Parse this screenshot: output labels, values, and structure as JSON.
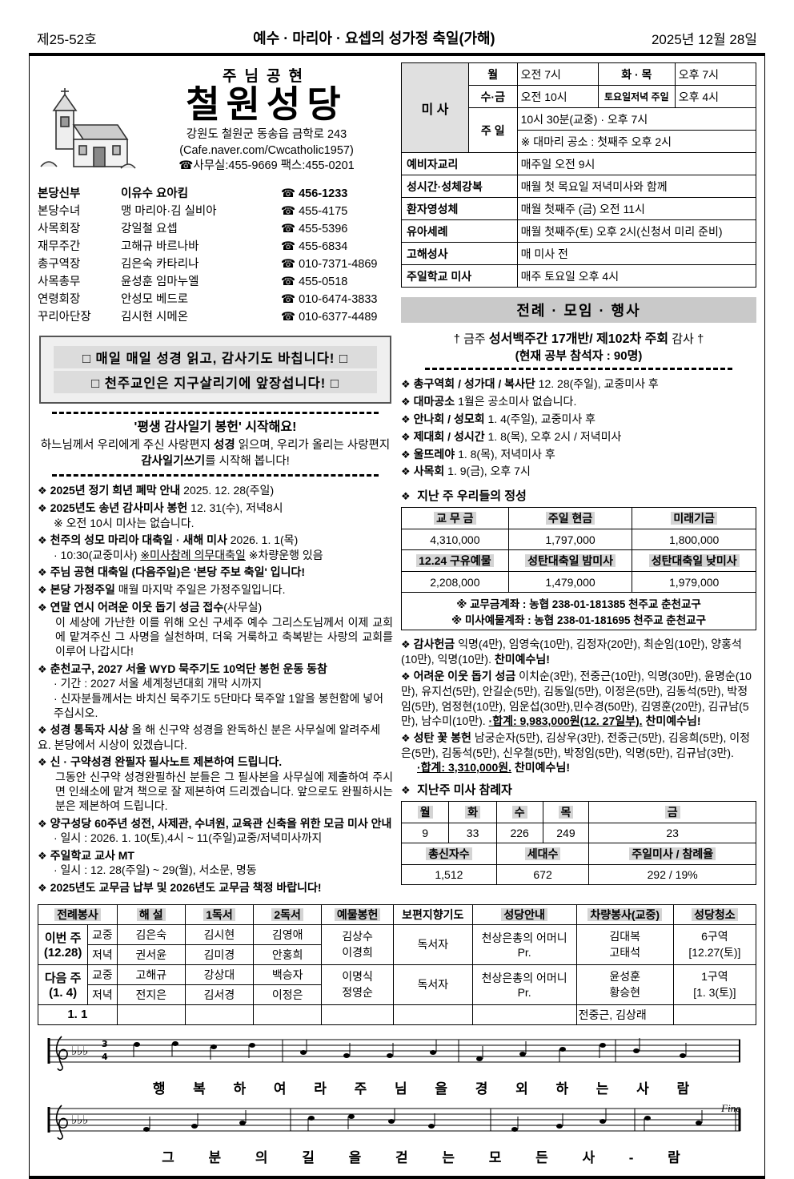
{
  "icons": {
    "bullet": "❖",
    "phone": "☎",
    "cross": "†"
  },
  "header": {
    "issue": "제25-52호",
    "feast": "예수 · 마리아 · 요셉의 성가정 축일(가해)",
    "date": "2025년 12월 28일"
  },
  "church": {
    "motto": "주님공현",
    "name": "철원성당",
    "address": "강원도 철원군 동송읍 금학로 243",
    "cafe": "(Cafe.naver.com/Cwcatholic1957)",
    "office": "☎사무실:455-9669  팩스:455-0201"
  },
  "staff": {
    "rows": [
      {
        "role": "본당신부",
        "name": "이유수 요아킴",
        "phone": "☎ 456-1233"
      },
      {
        "role": "본당수녀",
        "name": "맹 마리아·김 실비아",
        "phone": "☎ 455-4175"
      },
      {
        "role": "사목회장",
        "name": "강일철 요셉",
        "phone": "☎ 455-5396"
      },
      {
        "role": "재무주간",
        "name": "고해규 바르나바",
        "phone": "☎ 455-6834"
      },
      {
        "role": "총구역장",
        "name": "김은숙 카타리나",
        "phone": "☎ 010-7371-4869"
      },
      {
        "role": "사목총무",
        "name": "윤성훈 임마누엘",
        "phone": "☎ 455-0518"
      },
      {
        "role": "연령회장",
        "name": "안성모 베드로",
        "phone": "☎ 010-6474-3833"
      },
      {
        "role": "꾸리아단장",
        "name": "김시현 시메온",
        "phone": "☎ 010-6377-4489"
      }
    ]
  },
  "mass": {
    "label": "미 사",
    "r1": {
      "d1": "월",
      "t1": "오전 7시",
      "d2": "화 · 목",
      "t2": "오후 7시"
    },
    "r2": {
      "d1": "수·금",
      "t1": "오전 10시",
      "d2": "토요일저녁 주일",
      "t2": "오후 4시"
    },
    "sun": {
      "d": "주 일",
      "t1": "10시 30분(교중) · 오후 7시",
      "t2": "※ 대마리 공소 : 첫째주 오후 2시"
    },
    "extra": [
      {
        "k": "예비자교리",
        "v": "매주일 오전 9시"
      },
      {
        "k": "성시간·성체강복",
        "v": "매월 첫 목요일 저녁미사와 함께"
      },
      {
        "k": "환자영성체",
        "v": "매월 첫째주 (금) 오전 11시"
      },
      {
        "k": "유아세례",
        "v": "매월 첫째주(토) 오후 2시(신청서 미리 준비)"
      },
      {
        "k": "고해성사",
        "v": "매 미사 전"
      },
      {
        "k": "주일학교 미사",
        "v": "매주 토요일 오후 4시"
      }
    ]
  },
  "slogans": [
    "□ 매일 매일 성경 읽고, 감사기도 바칩니다! □",
    "□ 천주교인은 지구살리기에 앞장섭니다! □"
  ],
  "campaign": {
    "title": "'평생 감사일기 봉헌'",
    "title_suffix": "  시작해요!",
    "body1": "하느님께서 우리에게 주신 사랑편지 ",
    "body1b": "성경",
    "body2": " 읽으며, 우리가 올리는 사랑편지 ",
    "body2b": "감사일기쓰기",
    "body3": "를 시작해 봅니다!"
  },
  "announcements": {
    "items": [
      {
        "bold": "2025년 정기 희년 폐막 안내",
        "rest": "  2025. 12. 28(주일)"
      },
      {
        "bold": "2025년도 송년 감사미사 봉헌",
        "rest": " 12. 31(수), 저녁8시",
        "sub1": "※ 오전 10시 미사는 없습니다."
      },
      {
        "bold": "천주의 성모 마리아 대축일 · 새해 미사",
        "rest": " 2026. 1. 1(목)",
        "sub_pre": "· 10:30(교중미사) ",
        "sub_u": "※미사참례 의무대축일",
        "sub_post": "  ※차량운행 있음"
      },
      {
        "bold": "주님 공현 대축일 (다음주일)은  '본당 주보 축일'  입니다!"
      },
      {
        "bold": "본당 가정주일",
        "rest": " 매월 마지막 주일은 가정주일입니다."
      },
      {
        "bold": "연말 연시 어려운 이웃 돕기 성금 접수",
        "rest": "(사무실)",
        "para": "이 세상에 가난한 이를 위해 오신 구세주 예수 그리스도님께서 이제 교회에 맡겨주신 그 사명을 실천하며, 더욱 거룩하고 축복받는 사랑의 교회를 이루어 나갑시다!"
      },
      {
        "bold": "춘천교구, 2027 서울 WYD 묵주기도 10억단 봉헌 운동 동참",
        "sub1": "· 기간 : 2027 서울 세계청년대회 개막 시까지",
        "sub2": "· 신자분들께서는  바치신 묵주기도 5단마다 묵주알 1알을 봉헌함에 넣어주십시오."
      },
      {
        "bold": "성경 통독자 시상",
        "rest": " 올 해 신구약 성경을 완독하신 분은 사무실에 알려주세요. 본당에서 시상이 있겠습니다."
      },
      {
        "bold": "신 · 구약성경 완필자 필사노트 제본하여 드립니다.",
        "para": "그동안 신구약 성경완필하신 분들은 그 필사본을 사무실에 제출하여 주시면 인쇄소에 맡겨 책으로 잘 제본하여 드리겠습니다. 앞으로도 완필하시는 분은 제본하여 드립니다."
      },
      {
        "bold": "양구성당 60주년 성전, 사제관, 수녀원, 교육관 신축을 위한 모금 미사 안내",
        "sub1": "· 일시 : 2026. 1. 10(토),4시 ~ 11(주일)교중/저녁미사까지"
      },
      {
        "bold": "주일학교 교사 MT",
        "sub1": "· 일시 : 12. 28(주일) ~ 29(월), 서소문, 명동"
      },
      {
        "bold": "2025년도 교무금 납부 및 2026년도 교무금 책정 바랍니다!"
      }
    ]
  },
  "events": {
    "title": "전례 · 모임 · 행사",
    "cross_pre": "† 금주 ",
    "cross_bold": "성서백주간 17개반/ 제102차  주회",
    "cross_post": " 감사 †",
    "cross_sub": "(현재 공부 참석자 : 90명)",
    "items": [
      {
        "bold": "총구역회 / 성가대 / 복사단",
        "rest": " 12. 28(주일), 교중미사 후"
      },
      {
        "bold": "대마공소",
        "rest": " 1월은 공소미사 없습니다."
      },
      {
        "bold": "안나회 / 성모회",
        "rest": " 1. 4(주일), 교중미사 후"
      },
      {
        "bold": "제대회 / 성시간",
        "rest": " 1. 8(목), 오후 2시 / 저녁미사"
      },
      {
        "bold": "울뜨레야",
        "rest": " 1. 8(목), 저녁미사 후"
      },
      {
        "bold": "사목회",
        "rest": " 1. 9(금), 오후 7시"
      }
    ]
  },
  "offerings": {
    "title": "지난 주 우리들의 정성",
    "h1": [
      "교 무 금",
      "주일 현금",
      "미래기금"
    ],
    "v1": [
      "4,310,000",
      "1,797,000",
      "1,800,000"
    ],
    "h2": [
      "12.24 구유예물",
      "성탄대축일 밤미사",
      "성탄대축일 낮미사"
    ],
    "v2": [
      "2,208,000",
      "1,479,000",
      "1,979,000"
    ],
    "notes": [
      "※ 교무금계좌 : 농협 238-01-181385 천주교 춘천교구",
      "※ 미사예물계좌 : 농협 238-01-181695 천주교 춘천교구"
    ]
  },
  "donations": {
    "thanks": {
      "title": "감사헌금",
      "body": " 익명(4만), 임영숙(10만), 김정자(20만), 최순임(10만), 양홍석(10만), 익명(10만). ",
      "praise": "찬미예수님!"
    },
    "neighbor": {
      "title": "어려운 이웃 돕기 성금",
      "body": "  이치순(3만), 전중근(10만), 익명(30만), 윤명순(10만), 유지선(5만), 안길순(5만), 김동일(5만), 이정은(5만), 김동석(5만), 박정임(5만), 엄정현(10만), 임운섭(30만),민수경(50만), 김영훈(20만), 김규남(5만), 남수미(10만). ",
      "total": "·합계: 9,983,000원(12. 27일부).",
      "praise": " 찬미예수님!"
    },
    "flower": {
      "title": "성탄 꽃 봉헌",
      "body": " 남궁순자(5만), 김상우(3만), 전중근(5만), 김응희(5만), 이정은(5만), 김동석(5만), 신우철(5만), 박정임(5만), 익명(5만), 김규남(3만).",
      "total": "·합계: 3,310,000원.",
      "praise": " 찬미예수님!"
    }
  },
  "attendance": {
    "title": "지난주 미사 참례자",
    "days": [
      "월",
      "화",
      "수",
      "목",
      "금"
    ],
    "counts": [
      "9",
      "33",
      "226",
      "249",
      "23"
    ],
    "h2": [
      "총신자수",
      "세대수",
      "주일미사 / 참례율"
    ],
    "v2": [
      "1,512",
      "672",
      "292 / 19%"
    ]
  },
  "service": {
    "headers": [
      "전례봉사",
      "해 설",
      "1독서",
      "2독서",
      "예물봉헌",
      "보편지향기도",
      "성당안내",
      "차량봉사(교중)",
      "성당청소"
    ],
    "this_week": {
      "label": "이번 주",
      "date": "(12.28)",
      "m1": "교중",
      "m2": "저녁",
      "r1": [
        "김은숙",
        "김시현",
        "김영애"
      ],
      "r2": [
        "권서윤",
        "김미경",
        "안홍희"
      ],
      "gift1": "김상수",
      "gift2": "이경희",
      "prayer": "독서자",
      "guide1": "천상은총의 어머니",
      "guide2": "Pr.",
      "drive1": "김대복",
      "drive2": "고태석",
      "clean1": "6구역",
      "clean2": "[12.27(토)]"
    },
    "next_week": {
      "label": "다음 주",
      "date": "(1. 4)",
      "m1": "교중",
      "m2": "저녁",
      "r1": [
        "고해규",
        "강상대",
        "백승자"
      ],
      "r2": [
        "전지은",
        "김서경",
        "이정은"
      ],
      "gift1": "이명식",
      "gift2": "정영순",
      "prayer": "독서자",
      "guide1": "천상은총의 어머니",
      "guide2": "Pr.",
      "drive1": "윤성훈",
      "drive2": "황승현",
      "clean1": "1구역",
      "clean2": "[1. 3(토)]"
    },
    "extra": {
      "label": "1. 1",
      "drive": "전중근, 김상래"
    }
  },
  "hymn": {
    "line1": "행 복 하 여 라 주 님 을 경 외 하 는 사 람",
    "line2": "그 분 의 길 을 걷 는 모 든 사 - 람",
    "fine": "Fine"
  }
}
